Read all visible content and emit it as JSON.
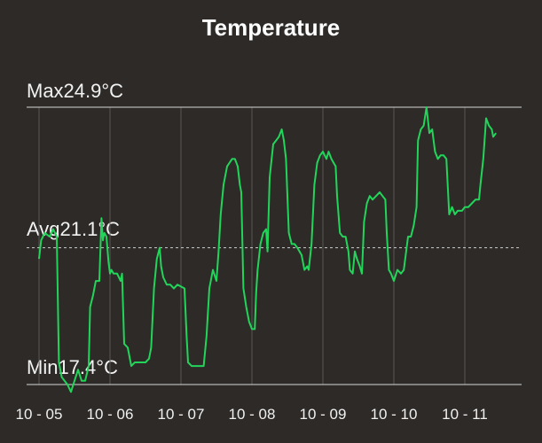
{
  "chart_data": {
    "type": "line",
    "title": "Temperature",
    "stats": {
      "max_label": "Max24.9°C",
      "avg_label": "Avg21.1°C",
      "min_label": "Min17.4°C",
      "max": 24.9,
      "avg": 21.1,
      "min": 17.4
    },
    "x_categories": [
      "10 - 05",
      "10 - 06",
      "10 - 07",
      "10 - 08",
      "10 - 09",
      "10 - 10",
      "10 - 11"
    ],
    "xlim_days": [
      0,
      7.1
    ],
    "ylim": [
      17.4,
      24.9
    ],
    "grid": true,
    "series": [
      {
        "color": "#22d55a",
        "points": [
          [
            0.0,
            20.8
          ],
          [
            0.03,
            21.3
          ],
          [
            0.08,
            21.5
          ],
          [
            0.15,
            21.4
          ],
          [
            0.2,
            21.6
          ],
          [
            0.25,
            21.4
          ],
          [
            0.28,
            18.0
          ],
          [
            0.32,
            17.6
          ],
          [
            0.4,
            17.4
          ],
          [
            0.45,
            17.2
          ],
          [
            0.5,
            17.5
          ],
          [
            0.55,
            17.8
          ],
          [
            0.6,
            17.5
          ],
          [
            0.65,
            17.5
          ],
          [
            0.7,
            17.9
          ],
          [
            0.72,
            19.5
          ],
          [
            0.76,
            19.8
          ],
          [
            0.8,
            20.2
          ],
          [
            0.85,
            20.2
          ],
          [
            0.88,
            21.9
          ],
          [
            0.9,
            21.3
          ],
          [
            0.92,
            21.5
          ],
          [
            0.95,
            21.4
          ],
          [
            0.98,
            20.7
          ],
          [
            1.0,
            20.4
          ],
          [
            1.02,
            20.5
          ],
          [
            1.05,
            20.4
          ],
          [
            1.1,
            20.4
          ],
          [
            1.15,
            20.2
          ],
          [
            1.17,
            20.4
          ],
          [
            1.2,
            18.5
          ],
          [
            1.25,
            18.4
          ],
          [
            1.3,
            17.9
          ],
          [
            1.35,
            18.0
          ],
          [
            1.4,
            18.0
          ],
          [
            1.45,
            18.0
          ],
          [
            1.5,
            18.0
          ],
          [
            1.55,
            18.1
          ],
          [
            1.58,
            18.4
          ],
          [
            1.62,
            20.0
          ],
          [
            1.66,
            20.8
          ],
          [
            1.7,
            21.1
          ],
          [
            1.72,
            20.6
          ],
          [
            1.75,
            20.3
          ],
          [
            1.8,
            20.1
          ],
          [
            1.85,
            20.1
          ],
          [
            1.9,
            20.0
          ],
          [
            1.95,
            20.1
          ],
          [
            2.05,
            20.0
          ],
          [
            2.08,
            18.7
          ],
          [
            2.1,
            18.0
          ],
          [
            2.15,
            17.9
          ],
          [
            2.2,
            17.9
          ],
          [
            2.28,
            17.9
          ],
          [
            2.32,
            17.9
          ],
          [
            2.36,
            18.7
          ],
          [
            2.4,
            20.0
          ],
          [
            2.45,
            20.5
          ],
          [
            2.5,
            20.2
          ],
          [
            2.53,
            21.0
          ],
          [
            2.56,
            22.0
          ],
          [
            2.6,
            22.8
          ],
          [
            2.65,
            23.3
          ],
          [
            2.72,
            23.5
          ],
          [
            2.76,
            23.5
          ],
          [
            2.8,
            23.3
          ],
          [
            2.83,
            22.8
          ],
          [
            2.85,
            22.6
          ],
          [
            2.88,
            20.0
          ],
          [
            2.92,
            19.5
          ],
          [
            2.96,
            19.1
          ],
          [
            3.0,
            18.9
          ],
          [
            3.04,
            18.9
          ],
          [
            3.06,
            19.9
          ],
          [
            3.08,
            20.5
          ],
          [
            3.12,
            21.2
          ],
          [
            3.16,
            21.5
          ],
          [
            3.2,
            21.6
          ],
          [
            3.22,
            21.0
          ],
          [
            3.25,
            23.0
          ],
          [
            3.3,
            23.9
          ],
          [
            3.34,
            24.0
          ],
          [
            3.38,
            24.1
          ],
          [
            3.42,
            24.3
          ],
          [
            3.45,
            24.0
          ],
          [
            3.48,
            23.5
          ],
          [
            3.52,
            21.5
          ],
          [
            3.56,
            21.2
          ],
          [
            3.6,
            21.2
          ],
          [
            3.64,
            21.1
          ],
          [
            3.7,
            20.9
          ],
          [
            3.74,
            20.5
          ],
          [
            3.78,
            20.6
          ],
          [
            3.8,
            20.5
          ],
          [
            3.84,
            21.2
          ],
          [
            3.88,
            22.8
          ],
          [
            3.92,
            23.4
          ],
          [
            3.96,
            23.6
          ],
          [
            4.0,
            23.7
          ],
          [
            4.05,
            23.5
          ],
          [
            4.08,
            23.7
          ],
          [
            4.12,
            23.5
          ],
          [
            4.15,
            23.4
          ],
          [
            4.18,
            23.3
          ],
          [
            4.2,
            22.5
          ],
          [
            4.24,
            21.5
          ],
          [
            4.28,
            21.4
          ],
          [
            4.32,
            21.4
          ],
          [
            4.36,
            21.0
          ],
          [
            4.38,
            20.5
          ],
          [
            4.42,
            20.4
          ],
          [
            4.45,
            21.0
          ],
          [
            4.48,
            20.8
          ],
          [
            4.52,
            20.6
          ],
          [
            4.55,
            20.4
          ],
          [
            4.58,
            21.8
          ],
          [
            4.62,
            22.3
          ],
          [
            4.66,
            22.5
          ],
          [
            4.7,
            22.4
          ],
          [
            4.75,
            22.5
          ],
          [
            4.8,
            22.6
          ],
          [
            4.84,
            22.5
          ],
          [
            4.88,
            22.4
          ],
          [
            4.9,
            21.5
          ],
          [
            4.93,
            20.5
          ],
          [
            4.96,
            20.4
          ],
          [
            5.0,
            20.2
          ],
          [
            5.05,
            20.5
          ],
          [
            5.1,
            20.4
          ],
          [
            5.14,
            20.5
          ],
          [
            5.16,
            20.8
          ],
          [
            5.2,
            21.4
          ],
          [
            5.24,
            21.4
          ],
          [
            5.28,
            21.7
          ],
          [
            5.32,
            22.2
          ],
          [
            5.34,
            24.0
          ],
          [
            5.38,
            24.3
          ],
          [
            5.42,
            24.4
          ],
          [
            5.46,
            24.9
          ],
          [
            5.5,
            24.2
          ],
          [
            5.54,
            24.3
          ],
          [
            5.58,
            23.7
          ],
          [
            5.62,
            23.5
          ],
          [
            5.66,
            23.6
          ],
          [
            5.7,
            23.6
          ],
          [
            5.74,
            23.5
          ],
          [
            5.78,
            22.0
          ],
          [
            5.82,
            22.2
          ],
          [
            5.86,
            22.0
          ],
          [
            5.9,
            22.1
          ],
          [
            5.96,
            22.1
          ],
          [
            6.0,
            22.2
          ],
          [
            6.05,
            22.2
          ],
          [
            6.1,
            22.3
          ],
          [
            6.15,
            22.4
          ],
          [
            6.2,
            22.4
          ],
          [
            6.22,
            22.8
          ],
          [
            6.26,
            23.5
          ],
          [
            6.3,
            24.6
          ],
          [
            6.34,
            24.4
          ],
          [
            6.38,
            24.3
          ],
          [
            6.4,
            24.1
          ],
          [
            6.44,
            24.2
          ]
        ]
      }
    ]
  }
}
